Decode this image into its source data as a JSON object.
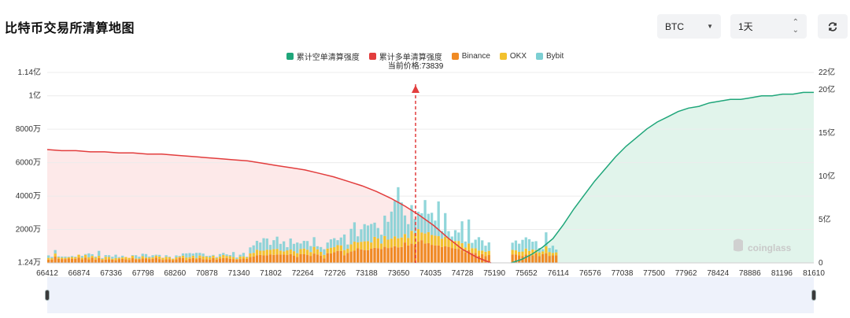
{
  "header": {
    "title": "比特币交易所清算地图",
    "coin_select": "BTC",
    "range_select": "1天",
    "refresh_icon": "refresh-icon"
  },
  "legend": [
    {
      "label": "累计空单清算强度",
      "color": "#1fa67a"
    },
    {
      "label": "累计多单清算强度",
      "color": "#e23d3d"
    },
    {
      "label": "Binance",
      "color": "#f08a24"
    },
    {
      "label": "OKX",
      "color": "#f2c12e"
    },
    {
      "label": "Bybit",
      "color": "#7ccfd3"
    }
  ],
  "watermark": "coinglass",
  "chart_data": {
    "type": "bar",
    "current_price": 73839,
    "current_price_label": "当前价格:73839",
    "x_tick_labels": [
      "66412",
      "66874",
      "67336",
      "67798",
      "68260",
      "70878",
      "71340",
      "71802",
      "72264",
      "72726",
      "73188",
      "73650",
      "74035",
      "74728",
      "75190",
      "75652",
      "76114",
      "76576",
      "77038",
      "77500",
      "77962",
      "78424",
      "78886",
      "81196",
      "81610"
    ],
    "left_axis": {
      "ticks": [
        "1.24万",
        "2000万",
        "4000万",
        "6000万",
        "8000万",
        "1亿",
        "1.14亿"
      ],
      "values": [
        124000,
        20000000,
        40000000,
        60000000,
        80000000,
        100000000,
        114000000
      ],
      "range": [
        124000,
        114000000
      ]
    },
    "right_axis": {
      "ticks": [
        "0",
        "5亿",
        "10亿",
        "15亿",
        "20亿",
        "22亿"
      ],
      "values": [
        0,
        500000000,
        1000000000,
        1500000000,
        2000000000,
        2200000000
      ],
      "range": [
        0,
        2200000000
      ]
    },
    "bar_slots": 228,
    "bars": [
      [
        20,
        10,
        15
      ],
      [
        20,
        8,
        8
      ],
      [
        38,
        18,
        21
      ],
      [
        25,
        8,
        6
      ],
      [
        23,
        8,
        7
      ],
      [
        23,
        7,
        8
      ],
      [
        26,
        7,
        4
      ],
      [
        25,
        10,
        6
      ],
      [
        24,
        9,
        4
      ],
      [
        32,
        17,
        0
      ],
      [
        21,
        10,
        11
      ],
      [
        31,
        17,
        5
      ],
      [
        21,
        12,
        24
      ],
      [
        31,
        11,
        10
      ],
      [
        20,
        12,
        6
      ],
      [
        29,
        13,
        30
      ],
      [
        17,
        7,
        5
      ],
      [
        20,
        16,
        11
      ],
      [
        22,
        13,
        11
      ],
      [
        19,
        6,
        12
      ],
      [
        16,
        13,
        20
      ],
      [
        23,
        7,
        5
      ],
      [
        24,
        9,
        10
      ],
      [
        21,
        14,
        0
      ],
      [
        18,
        12,
        0
      ],
      [
        28,
        15,
        4
      ],
      [
        22,
        5,
        19
      ],
      [
        22,
        4,
        11
      ],
      [
        26,
        14,
        15
      ],
      [
        26,
        6,
        21
      ],
      [
        23,
        9,
        6
      ],
      [
        25,
        8,
        13
      ],
      [
        32,
        11,
        6
      ],
      [
        23,
        15,
        10
      ],
      [
        18,
        12,
        1
      ],
      [
        21,
        15,
        10
      ],
      [
        22,
        12,
        4
      ],
      [
        17,
        7,
        2
      ],
      [
        22,
        11,
        12
      ],
      [
        31,
        6,
        5
      ],
      [
        29,
        14,
        14
      ],
      [
        16,
        16,
        25
      ],
      [
        24,
        10,
        25
      ],
      [
        29,
        14,
        13
      ],
      [
        23,
        7,
        30
      ],
      [
        30,
        14,
        16
      ],
      [
        22,
        17,
        17
      ],
      [
        21,
        16,
        5
      ],
      [
        20,
        13,
        10
      ],
      [
        29,
        14,
        5
      ],
      [
        20,
        10,
        5
      ],
      [
        27,
        11,
        15
      ],
      [
        29,
        18,
        13
      ],
      [
        29,
        12,
        10
      ],
      [
        25,
        15,
        7
      ],
      [
        23,
        12,
        30
      ],
      [
        20,
        4,
        8
      ],
      [
        23,
        15,
        11
      ],
      [
        26,
        13,
        21
      ],
      [
        24,
        9,
        4
      ],
      [
        35,
        22,
        36
      ],
      [
        38,
        22,
        45
      ],
      [
        46,
        33,
        53
      ],
      [
        48,
        25,
        49
      ],
      [
        45,
        28,
        75
      ],
      [
        46,
        33,
        67
      ],
      [
        51,
        27,
        30
      ],
      [
        48,
        34,
        54
      ],
      [
        50,
        34,
        73
      ],
      [
        50,
        24,
        40
      ],
      [
        50,
        19,
        60
      ],
      [
        47,
        28,
        19
      ],
      [
        53,
        27,
        66
      ],
      [
        44,
        26,
        44
      ],
      [
        35,
        23,
        64
      ],
      [
        52,
        31,
        33
      ],
      [
        52,
        34,
        46
      ],
      [
        47,
        32,
        52
      ],
      [
        42,
        23,
        36
      ],
      [
        56,
        40,
        58
      ],
      [
        50,
        31,
        19
      ],
      [
        44,
        22,
        29
      ],
      [
        27,
        21,
        34
      ],
      [
        58,
        28,
        36
      ],
      [
        57,
        34,
        50
      ],
      [
        64,
        30,
        54
      ],
      [
        72,
        34,
        30
      ],
      [
        71,
        34,
        47
      ],
      [
        46,
        31,
        93
      ],
      [
        59,
        26,
        25
      ],
      [
        68,
        43,
        93
      ],
      [
        73,
        54,
        116
      ],
      [
        87,
        36,
        36
      ],
      [
        81,
        45,
        75
      ],
      [
        77,
        52,
        103
      ],
      [
        76,
        54,
        94
      ],
      [
        85,
        37,
        111
      ],
      [
        90,
        66,
        85
      ],
      [
        88,
        58,
        63
      ],
      [
        83,
        33,
        53
      ],
      [
        96,
        65,
        122
      ],
      [
        89,
        50,
        107
      ],
      [
        93,
        52,
        162
      ],
      [
        100,
        59,
        212
      ],
      [
        93,
        54,
        306
      ],
      [
        95,
        57,
        210
      ],
      [
        122,
        51,
        111
      ],
      [
        104,
        45,
        83
      ],
      [
        115,
        77,
        154
      ],
      [
        106,
        71,
        86
      ],
      [
        127,
        75,
        104
      ],
      [
        136,
        46,
        115
      ],
      [
        116,
        60,
        200
      ],
      [
        118,
        66,
        110
      ],
      [
        108,
        59,
        133
      ],
      [
        105,
        58,
        90
      ],
      [
        104,
        56,
        208
      ],
      [
        95,
        50,
        46
      ],
      [
        99,
        57,
        142
      ],
      [
        96,
        51,
        43
      ],
      [
        89,
        45,
        24
      ],
      [
        85,
        46,
        65
      ],
      [
        84,
        47,
        51
      ],
      [
        76,
        42,
        131
      ],
      [
        63,
        29,
        36
      ],
      [
        77,
        39,
        144
      ],
      [
        60,
        28,
        32
      ],
      [
        60,
        27,
        52
      ],
      [
        44,
        30,
        80
      ],
      [
        53,
        21,
        61
      ],
      [
        40,
        27,
        36
      ],
      [
        47,
        25,
        51
      ],
      [
        51,
        27,
        43
      ],
      [
        51,
        24,
        59
      ],
      [
        45,
        21,
        49
      ],
      [
        40,
        28,
        70
      ],
      [
        51,
        35,
        67
      ],
      [
        46,
        25,
        71
      ],
      [
        45,
        35,
        47
      ],
      [
        57,
        20,
        53
      ],
      [
        40,
        23,
        26
      ],
      [
        52,
        17,
        13
      ],
      [
        58,
        42,
        83
      ],
      [
        42,
        23,
        24
      ],
      [
        45,
        15,
        43
      ],
      [
        46,
        17,
        17
      ]
    ],
    "short_curve_pct": [
      0,
      2,
      5,
      9,
      14,
      22,
      31,
      39,
      47,
      54,
      61,
      67,
      72,
      77,
      81,
      84,
      87,
      89,
      90,
      92,
      93,
      94,
      94,
      95,
      96,
      96,
      97,
      97,
      98,
      98
    ],
    "long_curve_pct": [
      100,
      99,
      99,
      98,
      98,
      97,
      97,
      96,
      96,
      95,
      94,
      93,
      92,
      91,
      90,
      88,
      86,
      84,
      82,
      79,
      76,
      72,
      68,
      63,
      57,
      50,
      42,
      33,
      22,
      12,
      5,
      0
    ]
  }
}
